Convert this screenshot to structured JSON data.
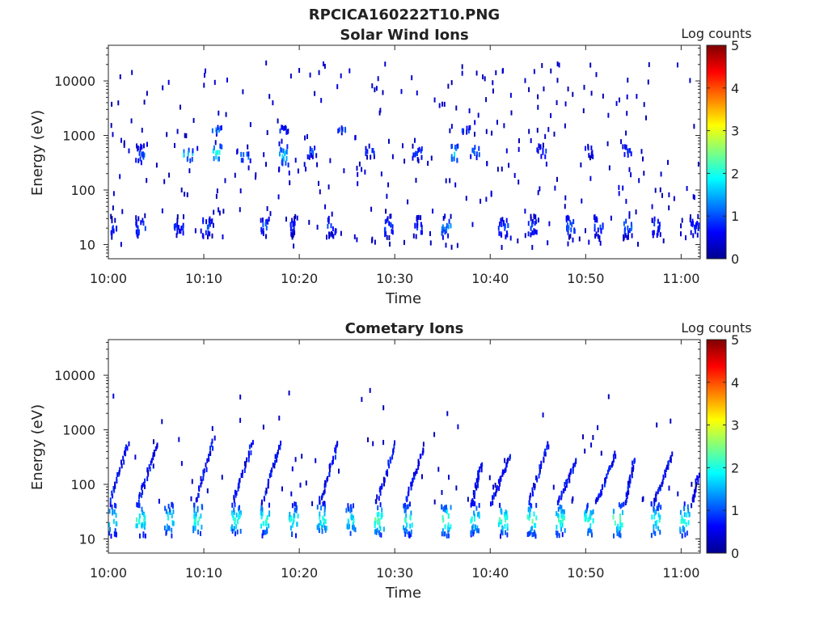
{
  "figure_title": "RPCICA160222T10.PNG",
  "colorbar_colors": [
    "#00008f",
    "#0000ff",
    "#007fff",
    "#00ffff",
    "#7fff7f",
    "#ffff00",
    "#ff7f00",
    "#ff0000",
    "#7f0000"
  ],
  "chart_data": [
    {
      "type": "heatmap",
      "title": "Solar Wind Ions",
      "xlabel": "Time",
      "ylabel": "Energy (eV)",
      "colorbar_label": "Log counts",
      "x_range": [
        "10:00",
        "11:02"
      ],
      "xticks": [
        "10:00",
        "10:10",
        "10:20",
        "10:30",
        "10:40",
        "10:50",
        "11:00"
      ],
      "y_scale": "log",
      "ylim": [
        5.5,
        45000
      ],
      "yticks": [
        10,
        100,
        1000,
        10000
      ],
      "ytick_labels": [
        "10",
        "100",
        "1000",
        "10000"
      ],
      "clim": [
        0,
        5
      ],
      "cticks": [
        "0",
        "1",
        "2",
        "3",
        "4",
        "5"
      ],
      "clusters": [
        {
          "time": "10:00",
          "energy_lo": 12,
          "energy_hi": 30,
          "log_counts": 0.8
        },
        {
          "time": "10:03",
          "energy_lo": 12,
          "energy_hi": 30,
          "log_counts": 0.9
        },
        {
          "time": "10:07",
          "energy_lo": 12,
          "energy_hi": 30,
          "log_counts": 0.7
        },
        {
          "time": "10:10",
          "energy_lo": 12,
          "energy_hi": 30,
          "log_counts": 0.9
        },
        {
          "time": "10:16",
          "energy_lo": 14,
          "energy_hi": 28,
          "log_counts": 1.0
        },
        {
          "time": "10:19",
          "energy_lo": 12,
          "energy_hi": 30,
          "log_counts": 0.7
        },
        {
          "time": "10:23",
          "energy_lo": 12,
          "energy_hi": 30,
          "log_counts": 0.8
        },
        {
          "time": "10:29",
          "energy_lo": 12,
          "energy_hi": 30,
          "log_counts": 0.9
        },
        {
          "time": "10:32",
          "energy_lo": 12,
          "energy_hi": 30,
          "log_counts": 0.8
        },
        {
          "time": "10:35",
          "energy_lo": 12,
          "energy_hi": 30,
          "log_counts": 1.1
        },
        {
          "time": "10:41",
          "energy_lo": 12,
          "energy_hi": 30,
          "log_counts": 0.9
        },
        {
          "time": "10:44",
          "energy_lo": 12,
          "energy_hi": 30,
          "log_counts": 0.9
        },
        {
          "time": "10:48",
          "energy_lo": 12,
          "energy_hi": 30,
          "log_counts": 1.0
        },
        {
          "time": "10:51",
          "energy_lo": 12,
          "energy_hi": 30,
          "log_counts": 0.9
        },
        {
          "time": "10:54",
          "energy_lo": 12,
          "energy_hi": 30,
          "log_counts": 1.1
        },
        {
          "time": "10:57",
          "energy_lo": 12,
          "energy_hi": 30,
          "log_counts": 0.9
        },
        {
          "time": "11:01",
          "energy_lo": 12,
          "energy_hi": 30,
          "log_counts": 0.8
        },
        {
          "time": "10:03",
          "energy_lo": 250,
          "energy_hi": 600,
          "log_counts": 0.9
        },
        {
          "time": "10:08",
          "energy_lo": 300,
          "energy_hi": 500,
          "log_counts": 1.8
        },
        {
          "time": "10:11",
          "energy_lo": 300,
          "energy_hi": 600,
          "log_counts": 2.0
        },
        {
          "time": "10:14",
          "energy_lo": 300,
          "energy_hi": 450,
          "log_counts": 1.3
        },
        {
          "time": "10:18",
          "energy_lo": 250,
          "energy_hi": 600,
          "log_counts": 1.6
        },
        {
          "time": "10:21",
          "energy_lo": 350,
          "energy_hi": 600,
          "log_counts": 1.0
        },
        {
          "time": "10:27",
          "energy_lo": 350,
          "energy_hi": 600,
          "log_counts": 0.8
        },
        {
          "time": "10:32",
          "energy_lo": 300,
          "energy_hi": 600,
          "log_counts": 0.8
        },
        {
          "time": "10:36",
          "energy_lo": 300,
          "energy_hi": 600,
          "log_counts": 1.7
        },
        {
          "time": "10:38",
          "energy_lo": 350,
          "energy_hi": 600,
          "log_counts": 1.2
        },
        {
          "time": "10:45",
          "energy_lo": 350,
          "energy_hi": 600,
          "log_counts": 0.9
        },
        {
          "time": "10:50",
          "energy_lo": 350,
          "energy_hi": 600,
          "log_counts": 0.8
        },
        {
          "time": "10:54",
          "energy_lo": 350,
          "energy_hi": 600,
          "log_counts": 0.9
        },
        {
          "time": "10:11",
          "energy_lo": 1000,
          "energy_hi": 1300,
          "log_counts": 1.3
        },
        {
          "time": "10:18",
          "energy_lo": 1000,
          "energy_hi": 1300,
          "log_counts": 1.0
        },
        {
          "time": "10:24",
          "energy_lo": 1000,
          "energy_hi": 1300,
          "log_counts": 1.0
        },
        {
          "time": "10:37",
          "energy_lo": 1000,
          "energy_hi": 1300,
          "log_counts": 1.0
        }
      ],
      "scatter_energy_range": [
        8,
        20000
      ],
      "scatter_level": 0.2
    },
    {
      "type": "heatmap",
      "title": "Cometary Ions",
      "xlabel": "Time",
      "ylabel": "Energy (eV)",
      "colorbar_label": "Log counts",
      "x_range": [
        "10:00",
        "11:02"
      ],
      "xticks": [
        "10:00",
        "10:10",
        "10:20",
        "10:30",
        "10:40",
        "10:50",
        "11:00"
      ],
      "y_scale": "log",
      "ylim": [
        5.5,
        45000
      ],
      "yticks": [
        10,
        100,
        1000,
        10000
      ],
      "ytick_labels": [
        "10",
        "100",
        "1000",
        "10000"
      ],
      "clim": [
        0,
        5
      ],
      "cticks": [
        "0",
        "1",
        "2",
        "3",
        "4",
        "5"
      ],
      "clusters": [
        {
          "time": "10:00",
          "energy_lo": 10,
          "energy_hi": 40,
          "log_counts": 1.7
        },
        {
          "time": "10:03",
          "energy_lo": 10,
          "energy_hi": 40,
          "log_counts": 1.9
        },
        {
          "time": "10:06",
          "energy_lo": 10,
          "energy_hi": 40,
          "log_counts": 1.8
        },
        {
          "time": "10:09",
          "energy_lo": 10,
          "energy_hi": 40,
          "log_counts": 2.0
        },
        {
          "time": "10:13",
          "energy_lo": 10,
          "energy_hi": 40,
          "log_counts": 1.9
        },
        {
          "time": "10:16",
          "energy_lo": 10,
          "energy_hi": 40,
          "log_counts": 2.0
        },
        {
          "time": "10:19",
          "energy_lo": 10,
          "energy_hi": 40,
          "log_counts": 1.8
        },
        {
          "time": "10:22",
          "energy_lo": 10,
          "energy_hi": 40,
          "log_counts": 1.9
        },
        {
          "time": "10:25",
          "energy_lo": 10,
          "energy_hi": 40,
          "log_counts": 1.7
        },
        {
          "time": "10:28",
          "energy_lo": 10,
          "energy_hi": 40,
          "log_counts": 2.1
        },
        {
          "time": "10:31",
          "energy_lo": 10,
          "energy_hi": 40,
          "log_counts": 1.9
        },
        {
          "time": "10:35",
          "energy_lo": 10,
          "energy_hi": 40,
          "log_counts": 2.2
        },
        {
          "time": "10:38",
          "energy_lo": 10,
          "energy_hi": 40,
          "log_counts": 1.9
        },
        {
          "time": "10:41",
          "energy_lo": 10,
          "energy_hi": 40,
          "log_counts": 2.0
        },
        {
          "time": "10:44",
          "energy_lo": 10,
          "energy_hi": 40,
          "log_counts": 2.1
        },
        {
          "time": "10:47",
          "energy_lo": 10,
          "energy_hi": 40,
          "log_counts": 2.0
        },
        {
          "time": "10:50",
          "energy_lo": 10,
          "energy_hi": 40,
          "log_counts": 1.9
        },
        {
          "time": "10:53",
          "energy_lo": 10,
          "energy_hi": 40,
          "log_counts": 2.2
        },
        {
          "time": "10:57",
          "energy_lo": 10,
          "energy_hi": 40,
          "log_counts": 1.9
        },
        {
          "time": "11:00",
          "energy_lo": 10,
          "energy_hi": 40,
          "log_counts": 2.0
        }
      ],
      "sweeps": [
        {
          "start": "10:00",
          "end": "10:02",
          "energy_lo": 40,
          "energy_hi": 500
        },
        {
          "start": "10:03",
          "end": "10:05",
          "energy_lo": 40,
          "energy_hi": 500
        },
        {
          "start": "10:09",
          "end": "10:11",
          "energy_lo": 40,
          "energy_hi": 600
        },
        {
          "start": "10:13",
          "end": "10:15",
          "energy_lo": 40,
          "energy_hi": 500
        },
        {
          "start": "10:16",
          "end": "10:18",
          "energy_lo": 40,
          "energy_hi": 500
        },
        {
          "start": "10:22",
          "end": "10:24",
          "energy_lo": 40,
          "energy_hi": 500
        },
        {
          "start": "10:28",
          "end": "10:30",
          "energy_lo": 40,
          "energy_hi": 500
        },
        {
          "start": "10:31",
          "end": "10:33",
          "energy_lo": 40,
          "energy_hi": 450
        },
        {
          "start": "10:38",
          "end": "10:39",
          "energy_lo": 40,
          "energy_hi": 200
        },
        {
          "start": "10:40",
          "end": "10:42",
          "energy_lo": 40,
          "energy_hi": 300
        },
        {
          "start": "10:44",
          "end": "10:46",
          "energy_lo": 40,
          "energy_hi": 500
        },
        {
          "start": "10:47",
          "end": "10:49",
          "energy_lo": 40,
          "energy_hi": 250
        },
        {
          "start": "10:51",
          "end": "10:53",
          "energy_lo": 40,
          "energy_hi": 300
        },
        {
          "start": "10:54",
          "end": "10:55",
          "energy_lo": 40,
          "energy_hi": 250
        },
        {
          "start": "10:57",
          "end": "10:59",
          "energy_lo": 40,
          "energy_hi": 300
        },
        {
          "start": "11:01",
          "end": "11:02",
          "energy_lo": 40,
          "energy_hi": 200
        }
      ],
      "scatter_energy_range": [
        40,
        5000
      ],
      "scatter_level": 0.2
    }
  ]
}
